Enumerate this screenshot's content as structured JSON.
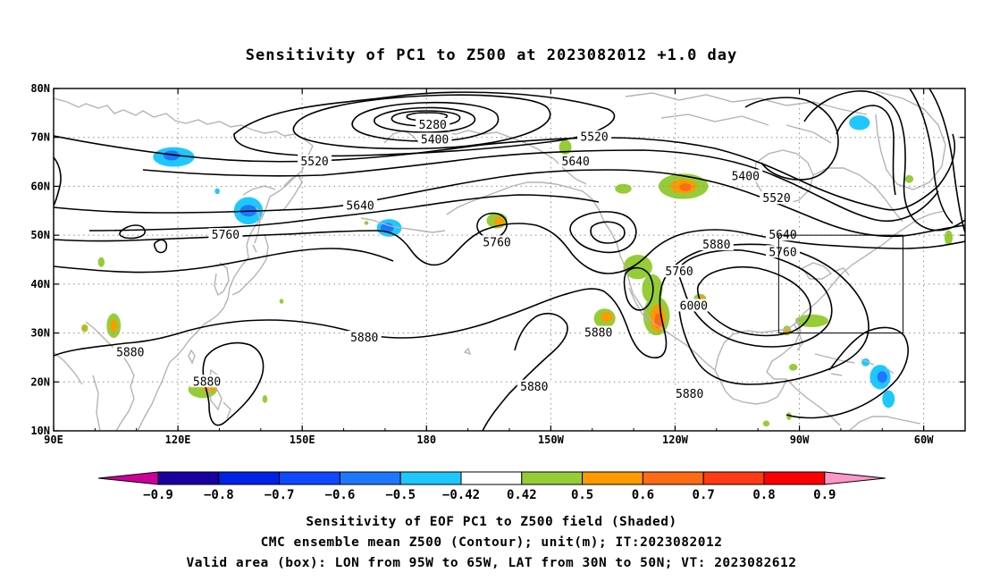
{
  "title": "Sensitivity of PC1 to Z500 at 2023082012 +1.0 day",
  "map": {
    "lon_range": [
      "90E",
      "300E"
    ],
    "lat_range": [
      10,
      80
    ],
    "lon_ticks": [
      {
        "lon": 90,
        "label": "90E"
      },
      {
        "lon": 120,
        "label": "120E"
      },
      {
        "lon": 150,
        "label": "150E"
      },
      {
        "lon": 180,
        "label": "180"
      },
      {
        "lon": 210,
        "label": "150W"
      },
      {
        "lon": 240,
        "label": "120W"
      },
      {
        "lon": 270,
        "label": "90W"
      },
      {
        "lon": 300,
        "label": "60W"
      }
    ],
    "lat_ticks": [
      {
        "lat": 10,
        "label": "10N"
      },
      {
        "lat": 20,
        "label": "20N"
      },
      {
        "lat": 30,
        "label": "30N"
      },
      {
        "lat": 40,
        "label": "40N"
      },
      {
        "lat": 50,
        "label": "50N"
      },
      {
        "lat": 60,
        "label": "60N"
      },
      {
        "lat": 70,
        "label": "70N"
      },
      {
        "lat": 80,
        "label": "80N"
      }
    ],
    "gridlines": "dotted",
    "valid_box": {
      "lon_min": 265,
      "lon_max": 295,
      "lat_min": 30,
      "lat_max": 50
    },
    "contour_labels": [
      {
        "text": "5280",
        "lon": 181.5,
        "lat": 72.5
      },
      {
        "text": "5400",
        "lon": 182,
        "lat": 69.5
      },
      {
        "text": "5520",
        "lon": 153,
        "lat": 65
      },
      {
        "text": "5520",
        "lon": 220.5,
        "lat": 70
      },
      {
        "text": "5640",
        "lon": 216,
        "lat": 65
      },
      {
        "text": "5640",
        "lon": 164,
        "lat": 56
      },
      {
        "text": "5400",
        "lon": 257,
        "lat": 62
      },
      {
        "text": "5520",
        "lon": 264.5,
        "lat": 57.5
      },
      {
        "text": "5760",
        "lon": 131.5,
        "lat": 50
      },
      {
        "text": "5760",
        "lon": 197,
        "lat": 48.5
      },
      {
        "text": "5760",
        "lon": 241,
        "lat": 42.5
      },
      {
        "text": "5880",
        "lon": 250,
        "lat": 48
      },
      {
        "text": "5640",
        "lon": 266,
        "lat": 50
      },
      {
        "text": "5760",
        "lon": 266,
        "lat": 46.5
      },
      {
        "text": "6000",
        "lon": 244.5,
        "lat": 35.5
      },
      {
        "text": "5880",
        "lon": 108.5,
        "lat": 26
      },
      {
        "text": "5880",
        "lon": 165,
        "lat": 29
      },
      {
        "text": "5880",
        "lon": 221.5,
        "lat": 30
      },
      {
        "text": "5880",
        "lon": 127,
        "lat": 20
      },
      {
        "text": "5880",
        "lon": 206,
        "lat": 19
      },
      {
        "text": "5880",
        "lon": 243.5,
        "lat": 17.5
      }
    ],
    "sensitivity_patches": [
      {
        "lon": 119,
        "lat": 66,
        "rx": 5,
        "ry": 2,
        "value": -0.5
      },
      {
        "lon": 118.5,
        "lat": 66.3,
        "rx": 2,
        "ry": 1,
        "value": -0.6
      },
      {
        "lon": 137,
        "lat": 55,
        "rx": 3.5,
        "ry": 2.8,
        "value": -0.5
      },
      {
        "lon": 137,
        "lat": 55,
        "rx": 2,
        "ry": 1.2,
        "value": -0.6
      },
      {
        "lon": 171,
        "lat": 51.5,
        "rx": 3,
        "ry": 1.8,
        "value": -0.5
      },
      {
        "lon": 170.5,
        "lat": 51.5,
        "rx": 1.6,
        "ry": 1,
        "value": -0.6
      },
      {
        "lon": 284.5,
        "lat": 73,
        "rx": 2.5,
        "ry": 1.5,
        "value": -0.5
      },
      {
        "lon": 289.5,
        "lat": 21,
        "rx": 2.5,
        "ry": 2.5,
        "value": -0.5
      },
      {
        "lon": 290,
        "lat": 21,
        "rx": 1.2,
        "ry": 1.2,
        "value": -0.6
      },
      {
        "lon": 291.5,
        "lat": 16.5,
        "rx": 1.5,
        "ry": 1.8,
        "value": -0.5
      },
      {
        "lon": 286,
        "lat": 24,
        "rx": 1,
        "ry": 0.8,
        "value": -0.5
      },
      {
        "lon": 242,
        "lat": 60,
        "rx": 6,
        "ry": 2.6,
        "value": 0.5
      },
      {
        "lon": 242,
        "lat": 60,
        "rx": 3.2,
        "ry": 1.4,
        "value": 0.6
      },
      {
        "lon": 242.5,
        "lat": 59.8,
        "rx": 1.4,
        "ry": 0.8,
        "value": 0.7
      },
      {
        "lon": 227.5,
        "lat": 59.5,
        "rx": 2,
        "ry": 1,
        "value": 0.5
      },
      {
        "lon": 197,
        "lat": 53,
        "rx": 2.5,
        "ry": 1.6,
        "value": 0.5
      },
      {
        "lon": 197.5,
        "lat": 52.8,
        "rx": 1.2,
        "ry": 0.9,
        "value": 0.6
      },
      {
        "lon": 213.5,
        "lat": 68,
        "rx": 1.5,
        "ry": 1.5,
        "value": 0.5
      },
      {
        "lon": 231,
        "lat": 43.5,
        "rx": 3.5,
        "ry": 2.5,
        "value": 0.5
      },
      {
        "lon": 234.5,
        "lat": 39,
        "rx": 2.5,
        "ry": 3,
        "value": 0.5
      },
      {
        "lon": 235.5,
        "lat": 33.5,
        "rx": 3.2,
        "ry": 4,
        "value": 0.5
      },
      {
        "lon": 235.8,
        "lat": 33,
        "rx": 1.9,
        "ry": 2.8,
        "value": 0.6
      },
      {
        "lon": 236,
        "lat": 32.5,
        "rx": 1,
        "ry": 1.5,
        "value": 0.7
      },
      {
        "lon": 223,
        "lat": 33,
        "rx": 2.6,
        "ry": 2,
        "value": 0.5
      },
      {
        "lon": 223.5,
        "lat": 33.3,
        "rx": 1.4,
        "ry": 1,
        "value": 0.6
      },
      {
        "lon": 246,
        "lat": 37,
        "rx": 1.5,
        "ry": 1,
        "value": 0.5
      },
      {
        "lon": 246.5,
        "lat": 37,
        "rx": 0.8,
        "ry": 0.6,
        "value": 0.6
      },
      {
        "lon": 273,
        "lat": 32.5,
        "rx": 4,
        "ry": 1.3,
        "value": 0.5
      },
      {
        "lon": 267,
        "lat": 30.5,
        "rx": 1,
        "ry": 1,
        "value": 0.5
      },
      {
        "lon": 267,
        "lat": 30.5,
        "rx": 0.6,
        "ry": 0.5,
        "value": 0.6
      },
      {
        "lon": 268.5,
        "lat": 23,
        "rx": 1,
        "ry": 0.7,
        "value": 0.5
      },
      {
        "lon": 267.5,
        "lat": 13,
        "rx": 0.6,
        "ry": 0.8,
        "value": 0.5
      },
      {
        "lon": 262,
        "lat": 11.5,
        "rx": 0.8,
        "ry": 0.6,
        "value": 0.5
      },
      {
        "lon": 306,
        "lat": 49.5,
        "rx": 1,
        "ry": 1.5,
        "value": 0.5
      },
      {
        "lon": 296.5,
        "lat": 61.5,
        "rx": 1,
        "ry": 0.8,
        "value": 0.5
      },
      {
        "lon": 126,
        "lat": 18.5,
        "rx": 3.5,
        "ry": 1.8,
        "value": 0.5
      },
      {
        "lon": 127.5,
        "lat": 18.8,
        "rx": 1.6,
        "ry": 0.9,
        "value": 0.6
      },
      {
        "lon": 104.5,
        "lat": 31.5,
        "rx": 1.7,
        "ry": 2.5,
        "value": 0.5
      },
      {
        "lon": 104.5,
        "lat": 31.5,
        "rx": 0.8,
        "ry": 1.2,
        "value": 0.6
      },
      {
        "lon": 97.5,
        "lat": 31,
        "rx": 0.8,
        "ry": 0.8,
        "value": 0.5
      },
      {
        "lon": 97.5,
        "lat": 31,
        "rx": 0.4,
        "ry": 0.4,
        "value": 0.6
      },
      {
        "lon": 101.5,
        "lat": 44.5,
        "rx": 0.8,
        "ry": 1,
        "value": 0.5
      },
      {
        "lon": 141,
        "lat": 16.5,
        "rx": 0.6,
        "ry": 0.8,
        "value": 0.5
      },
      {
        "lon": 129.5,
        "lat": 59,
        "rx": 0.6,
        "ry": 0.6,
        "value": -0.5
      },
      {
        "lon": 165.5,
        "lat": 52.5,
        "rx": 0.5,
        "ry": 0.4,
        "value": 0.5
      },
      {
        "lon": 145,
        "lat": 36.5,
        "rx": 0.5,
        "ry": 0.5,
        "value": 0.5
      }
    ]
  },
  "colorbar": {
    "labels": [
      "-0.9",
      "-0.8",
      "-0.7",
      "-0.6",
      "-0.5",
      "-0.42",
      "0.42",
      "0.5",
      "0.6",
      "0.7",
      "0.8",
      "0.9"
    ],
    "colors": [
      "#1a00a0",
      "#0022e6",
      "#0f48ff",
      "#1e78ff",
      "#1ec8ff",
      "#ffffff",
      "#96cd37",
      "#ff9a00",
      "#ff6a14",
      "#ff3a14",
      "#ff0000"
    ],
    "low_end_color": "#cc0099",
    "high_end_color": "#ff96c8"
  },
  "caption": {
    "line1": "Sensitivity of EOF PC1 to Z500 field (Shaded)",
    "line2": "CMC ensemble mean Z500 (Contour); unit(m); IT:2023082012",
    "line3": "Valid area (box): LON from 95W to 65W, LAT from 30N to 50N; VT: 2023082612"
  }
}
